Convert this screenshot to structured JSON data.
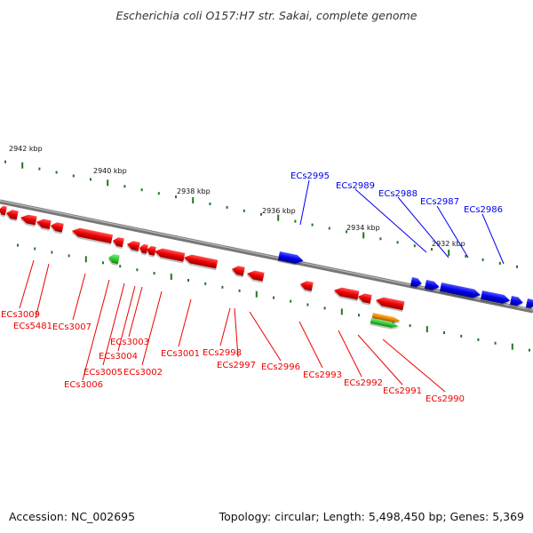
{
  "title": "Escherichia coli O157:H7 str. Sakai, complete genome",
  "footer": {
    "accession": "Accession: NC_002695",
    "summary": "Topology: circular; Length: 5,498,450 bp; Genes: 5,369"
  },
  "colors": {
    "forward_gene": "#0000ee",
    "reverse_gene": "#ee0000",
    "rna_gene": "#33cc33",
    "other_feature": "#ee8800",
    "backbone": "#808080",
    "tick": "#227722"
  },
  "scale_labels": [
    "2942 kbp",
    "2940 kbp",
    "2938 kbp",
    "2936 kbp",
    "2934 kbp",
    "2932 kbp"
  ],
  "forward_labels": [
    "ECs2995",
    "ECs2989",
    "ECs2988",
    "ECs2987",
    "ECs2986"
  ],
  "reverse_labels": [
    "ECs3009",
    "ECs5481",
    "ECs3007",
    "ECs3006",
    "ECs3005",
    "ECs3004",
    "ECs3003",
    "ECs3002",
    "ECs3001",
    "ECs2998",
    "ECs2997",
    "ECs2996",
    "ECs2993",
    "ECs2992",
    "ECs2991",
    "ECs2990"
  ]
}
